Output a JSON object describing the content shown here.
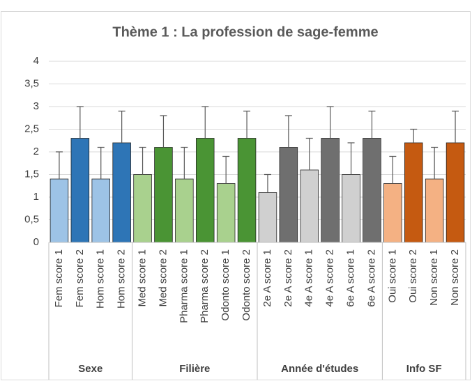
{
  "chart_data": {
    "type": "bar",
    "title": "Thème 1 : La profession de sage-femme",
    "ylim": [
      0,
      4
    ],
    "yticks": [
      0,
      {
        "value": 0.5,
        "label": "0,5"
      },
      1,
      {
        "value": 1.5,
        "label": "1,5"
      },
      2,
      {
        "value": 2.5,
        "label": "2,5"
      },
      3,
      {
        "value": 3.5,
        "label": "3,5"
      },
      4
    ],
    "grid": true,
    "groups": [
      {
        "name": "Sexe",
        "categories": [
          "Fem score 1",
          "Fem score 2",
          "Hom score 1",
          "Hom score 2"
        ],
        "values": [
          1.4,
          2.3,
          1.4,
          2.2
        ],
        "errors": [
          0.6,
          0.7,
          0.7,
          0.7
        ],
        "colors": [
          "#9dc3e6",
          "#2e75b6",
          "#9dc3e6",
          "#2e75b6"
        ]
      },
      {
        "name": "Filière",
        "categories": [
          "Med score 1",
          "Med score 2",
          "Pharma score 1",
          "Pharma score 2",
          "Odonto score 1",
          "Odonto score 2"
        ],
        "values": [
          1.5,
          2.1,
          1.4,
          2.3,
          1.3,
          2.3
        ],
        "errors": [
          0.6,
          0.7,
          0.7,
          0.7,
          0.6,
          0.6
        ],
        "colors": [
          "#a9d18e",
          "#4a9434",
          "#a9d18e",
          "#4a9434",
          "#a9d18e",
          "#4a9434"
        ]
      },
      {
        "name": "Année d'études",
        "categories": [
          "2e A score 1",
          "2e A score 2",
          "4e A score 1",
          "4e A score 2",
          "6e A score 1",
          "6e A score 2"
        ],
        "values": [
          1.1,
          2.1,
          1.6,
          2.3,
          1.5,
          2.3
        ],
        "errors": [
          0.4,
          0.7,
          0.7,
          0.7,
          0.7,
          0.6
        ],
        "colors": [
          "#d0d0d0",
          "#6f6f6f",
          "#d0d0d0",
          "#6f6f6f",
          "#d0d0d0",
          "#6f6f6f"
        ]
      },
      {
        "name": "Info SF",
        "categories": [
          "Oui score 1",
          "Oui score 2",
          "Non score 1",
          "Non score 2"
        ],
        "values": [
          1.3,
          2.2,
          1.4,
          2.2
        ],
        "errors": [
          0.6,
          0.3,
          0.7,
          0.7
        ],
        "colors": [
          "#f4b183",
          "#c55a11",
          "#f4b183",
          "#c55a11"
        ]
      }
    ]
  }
}
